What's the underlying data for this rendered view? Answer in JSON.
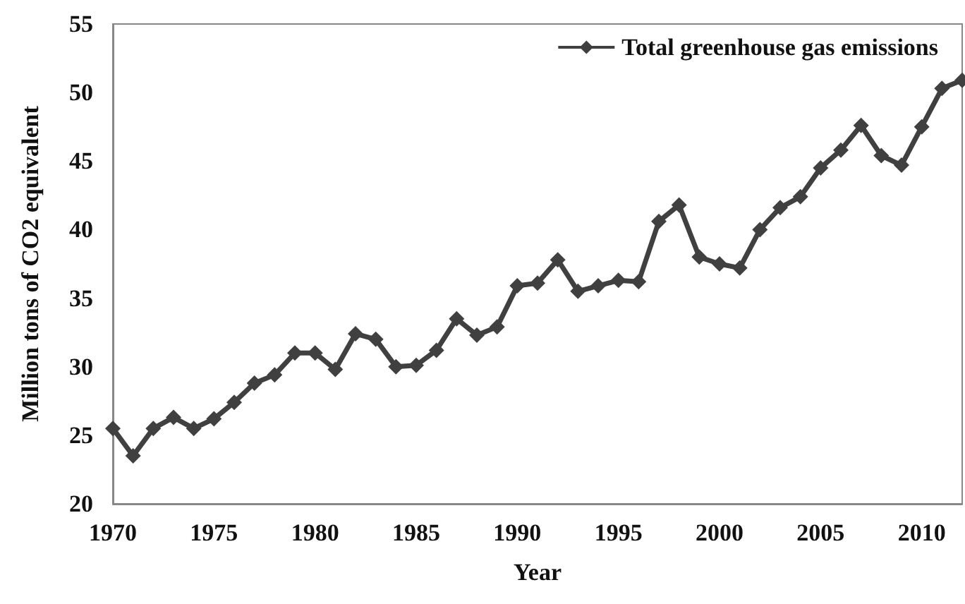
{
  "chart_data": {
    "type": "line",
    "xlabel": "Year",
    "ylabel": "Million tons of CO2 equivalent",
    "x": [
      1970,
      1971,
      1972,
      1973,
      1974,
      1975,
      1976,
      1977,
      1978,
      1979,
      1980,
      1981,
      1982,
      1983,
      1984,
      1985,
      1986,
      1987,
      1988,
      1989,
      1990,
      1991,
      1992,
      1993,
      1994,
      1995,
      1996,
      1997,
      1998,
      1999,
      2000,
      2001,
      2002,
      2003,
      2004,
      2005,
      2006,
      2007,
      2008,
      2009,
      2010,
      2011,
      2012
    ],
    "series": [
      {
        "name": "Total greenhouse gas emissions",
        "color": "#404040",
        "values": [
          25.5,
          23.5,
          25.5,
          26.3,
          25.5,
          26.2,
          27.4,
          28.8,
          29.4,
          31.0,
          31.0,
          29.8,
          32.4,
          32.0,
          30.0,
          30.1,
          31.2,
          33.5,
          32.3,
          32.9,
          35.9,
          36.1,
          37.8,
          35.5,
          35.9,
          36.3,
          36.2,
          40.6,
          41.8,
          38.0,
          37.5,
          37.2,
          40.0,
          41.6,
          42.4,
          44.5,
          45.8,
          47.6,
          45.4,
          44.7,
          47.5,
          50.3,
          50.9
        ]
      }
    ],
    "xlim": [
      1970,
      2012
    ],
    "xticks": [
      1970,
      1975,
      1980,
      1985,
      1990,
      1995,
      2000,
      2005,
      2010
    ],
    "ylim": [
      20,
      55
    ],
    "yticks": [
      20,
      25,
      30,
      35,
      40,
      45,
      50,
      55
    ],
    "grid": false,
    "legend": "top right",
    "marker": "diamond",
    "line_style": "solid"
  }
}
